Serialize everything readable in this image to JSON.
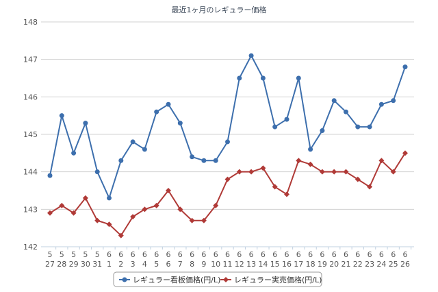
{
  "chart_data": {
    "type": "line",
    "title": "最近1ヶ月のレギュラー価格",
    "xlabel": "",
    "ylabel": "",
    "ylim": [
      142,
      148
    ],
    "yticks": [
      142,
      143,
      144,
      145,
      146,
      147,
      148
    ],
    "grid": true,
    "legend_position": "bottom",
    "categories": [
      [
        "5",
        "27"
      ],
      [
        "5",
        "28"
      ],
      [
        "5",
        "29"
      ],
      [
        "5",
        "30"
      ],
      [
        "5",
        "31"
      ],
      [
        "6",
        "1"
      ],
      [
        "6",
        "2"
      ],
      [
        "6",
        "3"
      ],
      [
        "6",
        "4"
      ],
      [
        "6",
        "5"
      ],
      [
        "6",
        "6"
      ],
      [
        "6",
        "7"
      ],
      [
        "6",
        "8"
      ],
      [
        "6",
        "9"
      ],
      [
        "6",
        "10"
      ],
      [
        "6",
        "11"
      ],
      [
        "6",
        "12"
      ],
      [
        "6",
        "13"
      ],
      [
        "6",
        "14"
      ],
      [
        "6",
        "15"
      ],
      [
        "6",
        "16"
      ],
      [
        "6",
        "17"
      ],
      [
        "6",
        "18"
      ],
      [
        "6",
        "19"
      ],
      [
        "6",
        "20"
      ],
      [
        "6",
        "21"
      ],
      [
        "6",
        "22"
      ],
      [
        "6",
        "23"
      ],
      [
        "6",
        "24"
      ],
      [
        "6",
        "25"
      ],
      [
        "6",
        "26"
      ]
    ],
    "series": [
      {
        "name": "レギュラー看板価格(円/L)",
        "color": "#3d6fad",
        "marker": "circle",
        "values": [
          143.9,
          145.5,
          144.5,
          145.3,
          144.0,
          143.3,
          144.3,
          144.8,
          144.6,
          145.6,
          145.8,
          145.3,
          144.4,
          144.3,
          144.3,
          144.8,
          146.5,
          147.1,
          146.5,
          145.2,
          145.4,
          146.5,
          144.6,
          145.1,
          145.9,
          145.6,
          145.2,
          145.2,
          145.8,
          145.9,
          146.8
        ]
      },
      {
        "name": "レギュラー実売価格(円/L)",
        "color": "#b03a37",
        "marker": "diamond",
        "values": [
          142.9,
          143.1,
          142.9,
          143.3,
          142.7,
          142.6,
          142.3,
          142.8,
          143.0,
          143.1,
          143.5,
          143.0,
          142.7,
          142.7,
          143.1,
          143.8,
          144.0,
          144.0,
          144.1,
          143.6,
          143.4,
          144.3,
          144.2,
          144.0,
          144.0,
          144.0,
          143.8,
          143.6,
          144.3,
          144.0,
          144.5
        ]
      }
    ]
  }
}
